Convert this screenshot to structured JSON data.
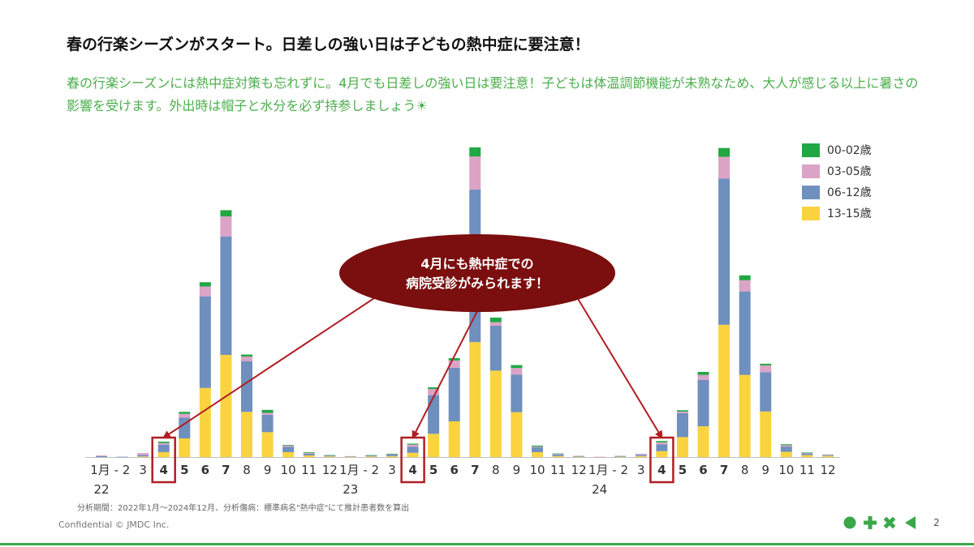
{
  "slide": {
    "title": "春の行楽シーズンがスタート。日差しの強い日は子どもの熱中症に要注意！",
    "subtitle": "春の行楽シーズンには熱中症対策も忘れずに。4月でも日差しの強い日は要注意！子どもは体温調節機能が未熟なため、大人が感じる以上に暑さの影響を受けます。外出時は帽子と水分を必ず持参しましょう☀",
    "footnote": "分析期間：2022年1月～2024年12月、分析傷病：標準病名\"熱中症\"にて推計患者数を算出",
    "confidential": "Confidential © JMDC Inc.",
    "page_number": "2",
    "callout": {
      "line1": "4月にも熱中症での",
      "line2": "病院受診がみられます！",
      "fill": "#7b0e0e"
    },
    "colors": {
      "highlight_box": "#b01e23",
      "arrow": "#b01e23",
      "brand_green": "#3aa84a"
    },
    "logo_icons": [
      "circle-icon",
      "plus-icon",
      "cross-icon",
      "triangle-icon"
    ]
  },
  "chart_data": {
    "type": "bar",
    "stacked": true,
    "title": "",
    "xlabel": "",
    "ylabel": "",
    "y_axis_visible": false,
    "ylim": [
      0,
      100
    ],
    "legend_position": "top-right",
    "categories": [
      "1月",
      "2",
      "3",
      "4",
      "5",
      "6",
      "7",
      "8",
      "9",
      "10",
      "11",
      "12",
      "1月",
      "2",
      "3",
      "4",
      "5",
      "6",
      "7",
      "8",
      "9",
      "10",
      "11",
      "12",
      "1月",
      "2",
      "3",
      "4",
      "5",
      "6",
      "7",
      "8",
      "9",
      "10",
      "11",
      "12"
    ],
    "category_ticks": [
      "1月 - 2",
      "3",
      "4",
      "5",
      "6",
      "7",
      "8",
      "9",
      "10",
      "11",
      "12",
      "1月 - 2",
      "3",
      "4",
      "5",
      "6",
      "7",
      "8",
      "9",
      "10",
      "11",
      "12",
      "1月 - 2",
      "3",
      "4",
      "5",
      "6",
      "7",
      "8",
      "9",
      "10",
      "11",
      "12"
    ],
    "bold_categories": [
      "4",
      "5",
      "6",
      "7"
    ],
    "years": [
      "22",
      "23",
      "24"
    ],
    "highlighted_months": [
      3,
      15,
      27
    ],
    "series": [
      {
        "name": "13-15歳",
        "color": "#fad33e",
        "values": [
          0,
          0,
          0.2,
          1.5,
          5.7,
          21.1,
          31.2,
          13.8,
          7.6,
          1.5,
          0.5,
          0.2,
          0.1,
          0.2,
          0.3,
          1.3,
          7.1,
          10.9,
          35.1,
          26.4,
          13.7,
          1.5,
          0.3,
          0.1,
          0,
          0.1,
          0.3,
          1.8,
          6.1,
          9.4,
          40.4,
          25.1,
          13.9,
          1.6,
          0.6,
          0.4
        ]
      },
      {
        "name": "06-12歳",
        "color": "#6f8fbe",
        "values": [
          0.3,
          0.1,
          0.4,
          2.3,
          6.3,
          28.0,
          36.2,
          15.5,
          5.3,
          1.6,
          0.5,
          0.2,
          0.1,
          0.2,
          0.5,
          1.8,
          11.8,
          16.4,
          46.6,
          13.7,
          11.5,
          1.5,
          0.5,
          0.2,
          0,
          0.2,
          0.4,
          2.1,
          7.3,
          14.2,
          44.7,
          25.5,
          12.0,
          1.6,
          0.5,
          0.3
        ]
      },
      {
        "name": "03-05歳",
        "color": "#dba3c6",
        "values": [
          0.2,
          0,
          0.6,
          0.5,
          1.2,
          3.0,
          6.1,
          1.4,
          0.6,
          0.4,
          0.3,
          0.1,
          0.1,
          0.1,
          0.1,
          0.7,
          1.9,
          2.2,
          10.1,
          1.1,
          2.0,
          0.2,
          0.2,
          0.1,
          0.1,
          0.1,
          0.3,
          0.6,
          0.5,
          1.5,
          6.6,
          3.4,
          2.1,
          0.4,
          0.2,
          0.1
        ]
      },
      {
        "name": "00-02歳",
        "color": "#21a744",
        "values": [
          0,
          0,
          0,
          0.4,
          0.6,
          1.3,
          1.9,
          0.6,
          0.9,
          0.2,
          0.2,
          0.1,
          0,
          0.1,
          0.1,
          0.3,
          0.5,
          0.7,
          2.8,
          1.4,
          0.9,
          0.3,
          0.1,
          0,
          0,
          0,
          0,
          0.4,
          0.4,
          0.9,
          2.7,
          1.5,
          0.5,
          0.3,
          0.1,
          0
        ]
      }
    ],
    "legend_order": [
      "00-02歳",
      "03-05歳",
      "06-12歳",
      "13-15歳"
    ]
  }
}
